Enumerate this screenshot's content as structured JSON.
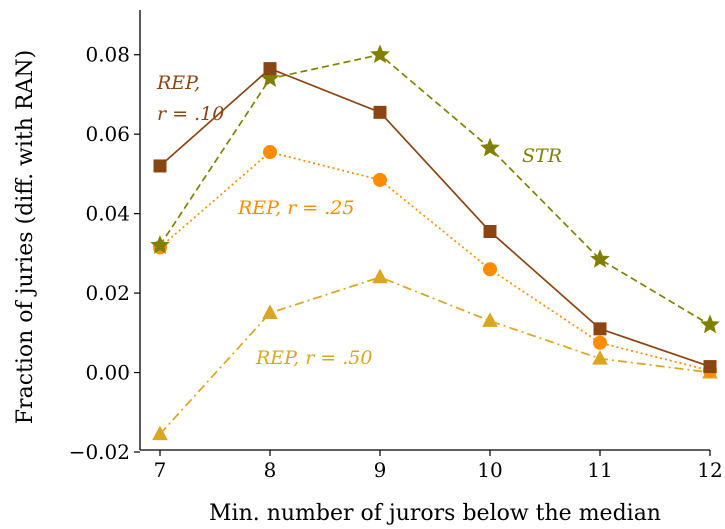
{
  "chart_data": {
    "type": "line",
    "title": "",
    "xlabel": "Min. number of jurors below the median",
    "ylabel": "Fraction of juries (diff. with RAN)",
    "x": [
      7,
      8,
      9,
      10,
      11,
      12
    ],
    "x_ticks": [
      "7",
      "8",
      "9",
      "10",
      "11",
      "12"
    ],
    "y_ticks": [
      "−0.02",
      "0.00",
      "0.02",
      "0.04",
      "0.06",
      "0.08"
    ],
    "xlim": [
      7,
      12
    ],
    "ylim": [
      -0.02,
      0.09
    ],
    "grid": false,
    "legend": "none (inline labels)",
    "series": [
      {
        "key": "rep10",
        "name_lines": [
          "REP,",
          "r = .10"
        ],
        "values": [
          0.052,
          0.0765,
          0.0655,
          0.0355,
          0.011,
          0.0015
        ],
        "color": "#8B4513",
        "marker": "square",
        "line_style": "solid"
      },
      {
        "key": "str",
        "name_lines": [
          "STR"
        ],
        "values": [
          0.032,
          0.074,
          0.08,
          0.0565,
          0.0285,
          0.012
        ],
        "color": "#808000",
        "marker": "star",
        "line_style": "dashed"
      },
      {
        "key": "rep25",
        "name_lines": [
          "REP, r = .25"
        ],
        "values": [
          0.0315,
          0.0555,
          0.0485,
          0.026,
          0.0075,
          0.0005
        ],
        "color": "#FF8C00",
        "marker": "circle",
        "line_style": "dotted"
      },
      {
        "key": "rep50",
        "name_lines": [
          "REP, r = .50"
        ],
        "values": [
          -0.0155,
          0.015,
          0.024,
          0.013,
          0.0035,
          0.0
        ],
        "color": "#DAA520",
        "marker": "triangle",
        "line_style": "dashdot"
      }
    ]
  }
}
